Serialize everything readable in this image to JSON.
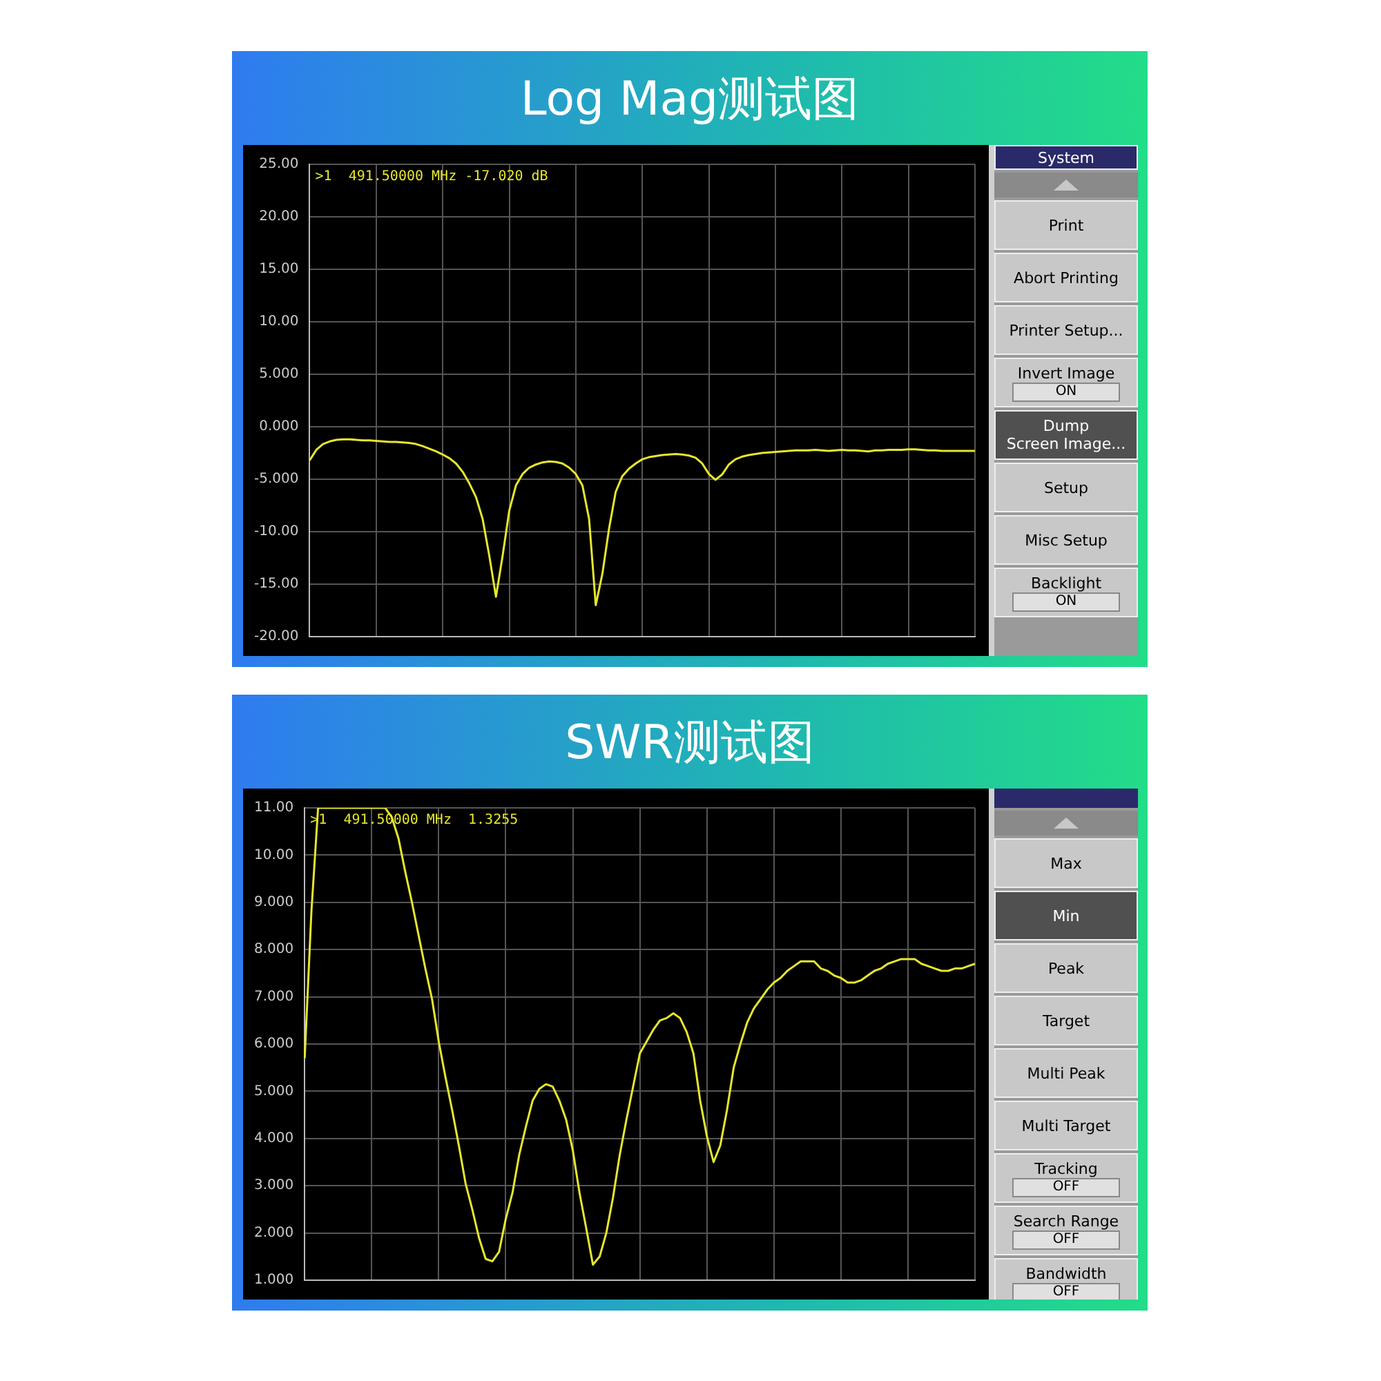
{
  "chart_data": [
    {
      "type": "line",
      "title": "Log Mag测试图",
      "categories": [
        null,
        null,
        null,
        null,
        null,
        null,
        null,
        null,
        null,
        null,
        null,
        null,
        null,
        null,
        null,
        null,
        null,
        null,
        null,
        null,
        null,
        null,
        null,
        null,
        null,
        null,
        null,
        null,
        null,
        null,
        null,
        null,
        null,
        null,
        null,
        null,
        null,
        null,
        null,
        null,
        null,
        null,
        null,
        null,
        null,
        null,
        null,
        null,
        null,
        null,
        null,
        null,
        null,
        null,
        null,
        null,
        null,
        null,
        null,
        null,
        null,
        null,
        null,
        null,
        null,
        null,
        null,
        null,
        null,
        null,
        null,
        null,
        null,
        null,
        null,
        null,
        null,
        null,
        null,
        null,
        null,
        null,
        null,
        null,
        null,
        null,
        null,
        null,
        null,
        null,
        null,
        null,
        null,
        null,
        null,
        null,
        null,
        null,
        null,
        null,
        null
      ],
      "series": [
        {
          "color": "#e6e62e",
          "values": [
            -3.2,
            -2.2,
            -1.65,
            -1.4,
            -1.25,
            -1.2,
            -1.2,
            -1.25,
            -1.3,
            -1.3,
            -1.35,
            -1.4,
            -1.45,
            -1.45,
            -1.5,
            -1.55,
            -1.65,
            -1.85,
            -2.1,
            -2.35,
            -2.65,
            -3.0,
            -3.5,
            -4.3,
            -5.4,
            -6.7,
            -8.8,
            -12.3,
            -16.2,
            -12.3,
            -8.0,
            -5.6,
            -4.5,
            -3.9,
            -3.6,
            -3.4,
            -3.3,
            -3.35,
            -3.5,
            -3.9,
            -4.5,
            -5.6,
            -8.8,
            -17.0,
            -14.0,
            -9.7,
            -6.2,
            -4.7,
            -4.0,
            -3.5,
            -3.1,
            -2.9,
            -2.8,
            -2.7,
            -2.65,
            -2.6,
            -2.65,
            -2.75,
            -2.95,
            -3.5,
            -4.5,
            -5.05,
            -4.55,
            -3.6,
            -3.1,
            -2.85,
            -2.7,
            -2.6,
            -2.5,
            -2.45,
            -2.4,
            -2.35,
            -2.3,
            -2.25,
            -2.25,
            -2.25,
            -2.2,
            -2.25,
            -2.3,
            -2.25,
            -2.2,
            -2.25,
            -2.25,
            -2.3,
            -2.35,
            -2.25,
            -2.25,
            -2.2,
            -2.2,
            -2.2,
            -2.15,
            -2.15,
            -2.2,
            -2.25,
            -2.25,
            -2.3,
            -2.3,
            -2.3,
            -2.3,
            -2.3,
            -2.3
          ]
        }
      ],
      "ylim": [
        -20,
        25
      ],
      "yticks": [
        {
          "value": -20,
          "label": "-20.00"
        },
        {
          "value": -15,
          "label": "-15.00"
        },
        {
          "value": -10,
          "label": "-10.00"
        },
        {
          "value": -5,
          "label": "-5.000"
        },
        {
          "value": 0,
          "label": "0.000"
        },
        {
          "value": 5,
          "label": "5.000"
        },
        {
          "value": 10,
          "label": "10.00"
        },
        {
          "value": 15,
          "label": "15.00"
        },
        {
          "value": 20,
          "label": "20.00"
        },
        {
          "value": 25,
          "label": "25.00"
        }
      ],
      "grid": true,
      "marker": "none",
      "tick_labels": "y",
      "annotations": [
        ">1  491.50000 MHz -17.020 dB"
      ]
    },
    {
      "type": "other",
      "annotations": [
        "System",
        "Print",
        "Abort Printing",
        "Printer Setup...",
        "Invert Image\nON",
        "Dump\nScreen Image...",
        "Setup",
        "Misc Setup",
        "Backlight\nON"
      ],
      "colors": [
        "#2a2a6a",
        "#c8c8c8",
        "#c8c8c8",
        "#c8c8c8",
        "#c8c8c8",
        "#505050",
        "#c8c8c8",
        "#c8c8c8",
        "#c8c8c8"
      ]
    },
    {
      "type": "line",
      "title": "SWR测试图",
      "categories": [
        null,
        null,
        null,
        null,
        null,
        null,
        null,
        null,
        null,
        null,
        null,
        null,
        null,
        null,
        null,
        null,
        null,
        null,
        null,
        null,
        null,
        null,
        null,
        null,
        null,
        null,
        null,
        null,
        null,
        null,
        null,
        null,
        null,
        null,
        null,
        null,
        null,
        null,
        null,
        null,
        null,
        null,
        null,
        null,
        null,
        null,
        null,
        null,
        null,
        null,
        null,
        null,
        null,
        null,
        null,
        null,
        null,
        null,
        null,
        null,
        null,
        null,
        null,
        null,
        null,
        null,
        null,
        null,
        null,
        null,
        null,
        null,
        null,
        null,
        null,
        null,
        null,
        null,
        null,
        null,
        null,
        null,
        null,
        null,
        null,
        null,
        null,
        null,
        null,
        null,
        null,
        null,
        null,
        null,
        null,
        null,
        null,
        null,
        null,
        null,
        null
      ],
      "series": [
        {
          "color": "#e6e62e",
          "values": [
            5.7,
            8.8,
            11,
            11,
            11,
            11,
            11,
            11,
            11,
            11,
            11,
            11,
            11,
            10.8,
            10.35,
            9.65,
            9.0,
            8.3,
            7.6,
            6.95,
            6.05,
            5.3,
            4.6,
            3.85,
            3.05,
            2.5,
            1.9,
            1.45,
            1.4,
            1.6,
            2.3,
            2.85,
            3.65,
            4.25,
            4.8,
            5.05,
            5.15,
            5.1,
            4.8,
            4.4,
            3.75,
            2.85,
            2.1,
            1.33,
            1.5,
            2.0,
            2.75,
            3.65,
            4.4,
            5.1,
            5.8,
            6.05,
            6.3,
            6.5,
            6.55,
            6.65,
            6.55,
            6.25,
            5.8,
            4.8,
            4.05,
            3.5,
            3.85,
            4.6,
            5.5,
            6.0,
            6.45,
            6.75,
            6.95,
            7.15,
            7.3,
            7.4,
            7.55,
            7.65,
            7.75,
            7.75,
            7.75,
            7.6,
            7.55,
            7.45,
            7.4,
            7.3,
            7.3,
            7.35,
            7.45,
            7.55,
            7.6,
            7.7,
            7.75,
            7.8,
            7.8,
            7.8,
            7.7,
            7.65,
            7.6,
            7.55,
            7.55,
            7.6,
            7.6,
            7.65,
            7.7
          ]
        }
      ],
      "ylim": [
        1,
        11
      ],
      "yticks": [
        {
          "value": 1,
          "label": "1.000"
        },
        {
          "value": 2,
          "label": "2.000"
        },
        {
          "value": 3,
          "label": "3.000"
        },
        {
          "value": 4,
          "label": "4.000"
        },
        {
          "value": 5,
          "label": "5.000"
        },
        {
          "value": 6,
          "label": "6.000"
        },
        {
          "value": 7,
          "label": "7.000"
        },
        {
          "value": 8,
          "label": "8.000"
        },
        {
          "value": 9,
          "label": "9.000"
        },
        {
          "value": 10,
          "label": "10.00"
        },
        {
          "value": 11,
          "label": "11.00"
        }
      ],
      "grid": true,
      "marker": "none",
      "tick_labels": "y",
      "annotations": [
        ">1  491.50000 MHz  1.3255"
      ]
    },
    {
      "type": "other",
      "annotations": [
        "Max",
        "Min",
        "Peak",
        "Target",
        "Multi Peak",
        "Multi Target",
        "Tracking\nOFF",
        "Search Range\nOFF",
        "Bandwidth\nOFF"
      ],
      "colors": [
        "#c8c8c8",
        "#505050",
        "#c8c8c8",
        "#c8c8c8",
        "#c8c8c8",
        "#c8c8c8",
        "#c8c8c8",
        "#c8c8c8",
        "#c8c8c8"
      ]
    }
  ]
}
